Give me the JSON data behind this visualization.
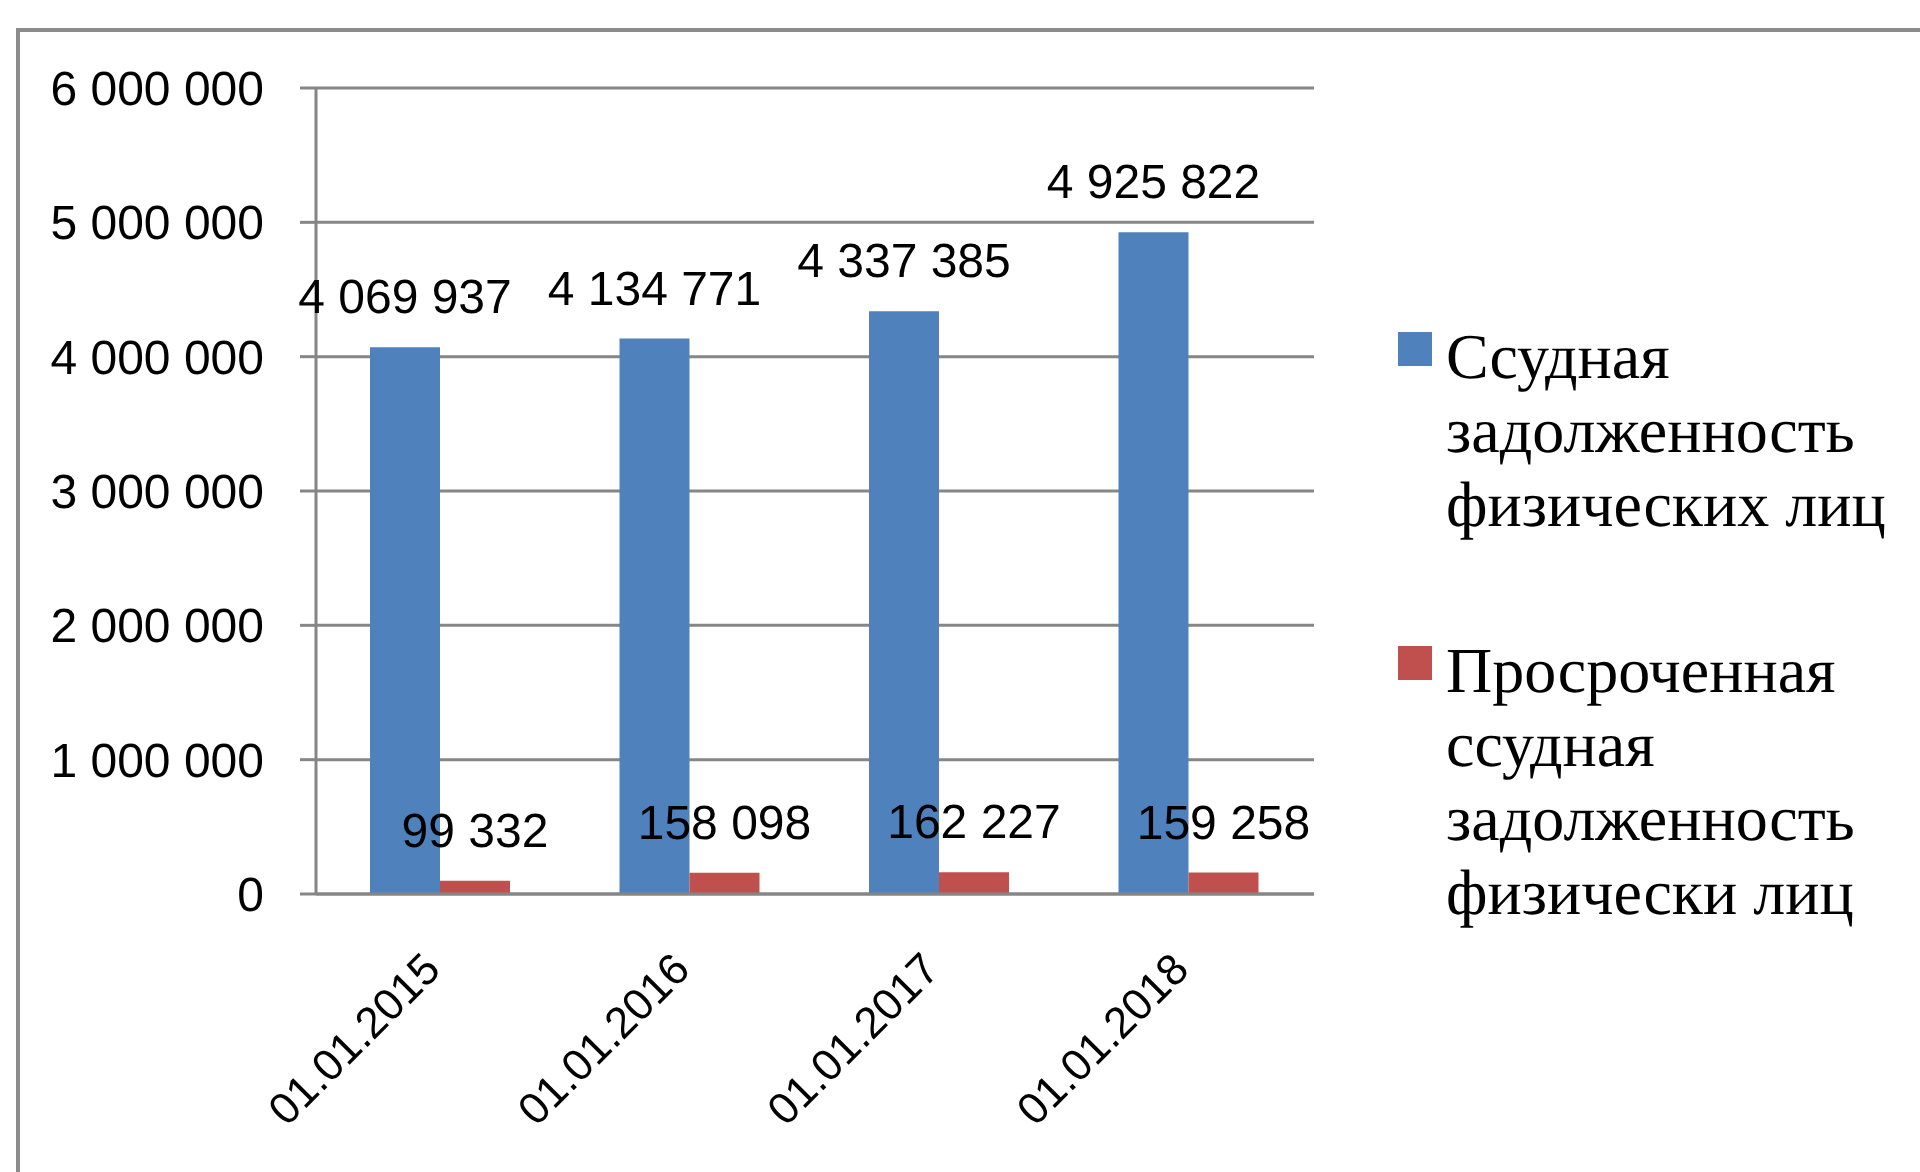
{
  "chart_data": {
    "type": "bar",
    "categories": [
      "01.01.2015",
      "01.01.2016",
      "01.01.2017",
      "01.01.2018"
    ],
    "series": [
      {
        "name": "Ссудная задолженность физических лиц",
        "color": "#4f81bd",
        "values": [
          4069937,
          4134771,
          4337385,
          4925822
        ],
        "value_labels": [
          "4 069 937",
          "4 134 771",
          "4 337 385",
          "4 925 822"
        ]
      },
      {
        "name": "Просроченная ссудная задолженность физически лиц",
        "color": "#c0504d",
        "values": [
          99332,
          158098,
          162227,
          159258
        ],
        "value_labels": [
          "99 332",
          "158 098",
          "162 227",
          "159 258"
        ]
      }
    ],
    "ylim": [
      0,
      6000000
    ],
    "yticks": [
      0,
      {
        "value": 1000000,
        "label": "1 000 000"
      },
      {
        "value": 2000000,
        "label": "2 000 000"
      },
      {
        "value": 3000000,
        "label": "3 000 000"
      },
      {
        "value": 4000000,
        "label": "4 000 000"
      },
      {
        "value": 5000000,
        "label": "5 000 000"
      },
      {
        "value": 6000000,
        "label": "6 000 000"
      }
    ],
    "grid": "y",
    "legend": "right"
  }
}
